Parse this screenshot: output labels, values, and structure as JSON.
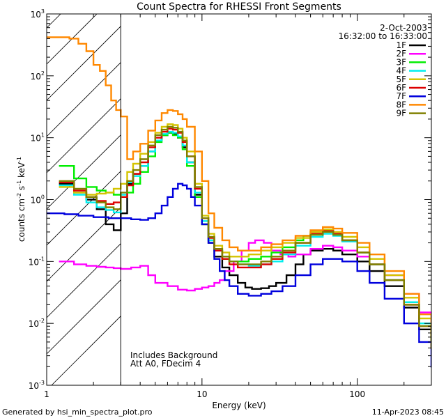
{
  "chart_data": {
    "type": "line",
    "title": "Count Spectra for RHESSI Front Segments",
    "xlabel": "Energy (keV)",
    "ylabel_main": "counts cm",
    "ylabel_sup1": "-2",
    "ylabel_mid": " s",
    "ylabel_sup2": "-1",
    "ylabel_end": " keV",
    "ylabel_sup3": "-1",
    "xscale": "log",
    "yscale": "log",
    "xlim": [
      1,
      300
    ],
    "ylim": [
      0.001,
      1000
    ],
    "x_ticks": [
      {
        "value": 1,
        "label": "1"
      },
      {
        "value": 10,
        "label": "10"
      },
      {
        "value": 100,
        "label": "100"
      }
    ],
    "y_ticks": [
      {
        "value": 0.001,
        "base": "10",
        "exp": "-3"
      },
      {
        "value": 0.01,
        "base": "10",
        "exp": "-2"
      },
      {
        "value": 0.1,
        "base": "10",
        "exp": "-1"
      },
      {
        "value": 1,
        "base": "10",
        "exp": "0"
      },
      {
        "value": 10,
        "base": "10",
        "exp": "1"
      },
      {
        "value": 100,
        "base": "10",
        "exp": "2"
      },
      {
        "value": 1000,
        "base": "10",
        "exp": "3"
      }
    ],
    "date": "2-Oct-2003",
    "time_range": "16:32:00 to 16:33:00",
    "notes": [
      "Includes Background",
      "Att A0, FDecim 4"
    ],
    "excluded_region": {
      "from": 1,
      "to": 3,
      "style": "hatched"
    },
    "threshold_line": 3,
    "legend_position": "top-right",
    "series": [
      {
        "name": "1F",
        "color": "#000000",
        "x": [
          1.2,
          1.5,
          1.8,
          2.1,
          2.4,
          2.7,
          3.0,
          3.3,
          3.6,
          4.0,
          4.5,
          5.0,
          5.5,
          6.0,
          6.5,
          7.0,
          7.5,
          8.0,
          9.0,
          10.0,
          11.0,
          12.0,
          13.5,
          15.0,
          17.0,
          19.0,
          21.0,
          24.0,
          27.0,
          30.0,
          35.0,
          40.0,
          45.0,
          50.0,
          60.0,
          70.0,
          80.0,
          100.0,
          120.0,
          150.0,
          200.0,
          250.0,
          300.0
        ],
        "y": [
          1.8,
          1.3,
          1.0,
          0.7,
          0.4,
          0.32,
          0.6,
          1.8,
          2.6,
          3.5,
          6.0,
          9.0,
          11.0,
          12.0,
          11.5,
          10.0,
          7.0,
          4.0,
          1.2,
          0.4,
          0.2,
          0.12,
          0.08,
          0.06,
          0.045,
          0.038,
          0.036,
          0.037,
          0.04,
          0.045,
          0.06,
          0.09,
          0.13,
          0.15,
          0.16,
          0.15,
          0.13,
          0.1,
          0.07,
          0.04,
          0.018,
          0.008,
          0.004
        ]
      },
      {
        "name": "2F",
        "color": "#ff00ff",
        "x": [
          1.2,
          1.5,
          1.8,
          2.1,
          2.4,
          2.7,
          3.0,
          3.5,
          4.0,
          4.5,
          5.0,
          6.0,
          7.0,
          8.0,
          9.0,
          10.0,
          11.0,
          12.0,
          13.0,
          14.0,
          16.0,
          18.0,
          20.0,
          22.0,
          25.0,
          28.0,
          32.0,
          36.0,
          40.0,
          50.0,
          60.0,
          70.0,
          80.0,
          100.0,
          120.0,
          150.0,
          200.0,
          250.0,
          300.0
        ],
        "y": [
          0.1,
          0.09,
          0.085,
          0.082,
          0.08,
          0.078,
          0.076,
          0.08,
          0.085,
          0.06,
          0.045,
          0.04,
          0.035,
          0.034,
          0.036,
          0.038,
          0.04,
          0.045,
          0.05,
          0.07,
          0.1,
          0.15,
          0.2,
          0.22,
          0.2,
          0.15,
          0.13,
          0.12,
          0.13,
          0.16,
          0.18,
          0.17,
          0.15,
          0.12,
          0.09,
          0.06,
          0.03,
          0.015,
          0.008
        ]
      },
      {
        "name": "3F",
        "color": "#00ee00",
        "x": [
          1.2,
          1.5,
          1.8,
          2.1,
          2.4,
          2.7,
          3.0,
          3.3,
          3.6,
          4.0,
          4.5,
          5.0,
          5.5,
          6.0,
          6.5,
          7.0,
          7.5,
          8.0,
          9.0,
          10.0,
          11.0,
          12.0,
          13.5,
          15.0,
          17.0,
          20.0,
          24.0,
          28.0,
          33.0,
          40.0,
          45.0,
          50.0,
          60.0,
          70.0,
          80.0,
          100.0,
          120.0,
          150.0,
          200.0,
          250.0,
          300.0
        ],
        "y": [
          3.5,
          2.2,
          1.6,
          1.4,
          1.3,
          1.2,
          1.1,
          1.3,
          1.8,
          2.8,
          5.0,
          8.5,
          11.0,
          12.0,
          11.0,
          10.0,
          6.5,
          3.5,
          1.1,
          0.4,
          0.22,
          0.15,
          0.11,
          0.1,
          0.1,
          0.11,
          0.12,
          0.14,
          0.17,
          0.22,
          0.26,
          0.3,
          0.32,
          0.28,
          0.22,
          0.14,
          0.09,
          0.05,
          0.022,
          0.01,
          0.005
        ]
      },
      {
        "name": "4F",
        "color": "#00eeee",
        "x": [
          1.2,
          1.5,
          1.8,
          2.1,
          2.4,
          2.7,
          3.0,
          3.3,
          3.6,
          4.0,
          4.5,
          5.0,
          5.5,
          6.0,
          6.5,
          7.0,
          7.5,
          8.0,
          9.0,
          10.0,
          11.0,
          12.0,
          13.5,
          15.0,
          17.0,
          20.0,
          24.0,
          28.0,
          33.0,
          40.0,
          50.0,
          60.0,
          70.0,
          80.0,
          100.0,
          120.0,
          150.0,
          200.0,
          250.0,
          300.0
        ],
        "y": [
          1.7,
          1.2,
          0.9,
          0.75,
          0.68,
          0.62,
          1.2,
          1.9,
          2.4,
          3.5,
          6.0,
          9.0,
          11.5,
          12.5,
          12.0,
          10.5,
          7.5,
          4.0,
          1.3,
          0.45,
          0.22,
          0.15,
          0.12,
          0.1,
          0.09,
          0.085,
          0.09,
          0.1,
          0.13,
          0.18,
          0.25,
          0.28,
          0.26,
          0.21,
          0.14,
          0.09,
          0.05,
          0.022,
          0.01,
          0.005
        ]
      },
      {
        "name": "5F",
        "color": "#d4c400",
        "x": [
          1.2,
          1.5,
          1.8,
          2.1,
          2.4,
          2.7,
          3.0,
          3.3,
          3.6,
          4.0,
          4.5,
          5.0,
          5.5,
          6.0,
          6.5,
          7.0,
          7.5,
          8.0,
          9.0,
          10.0,
          11.0,
          12.0,
          13.5,
          15.0,
          17.0,
          20.0,
          24.0,
          28.0,
          33.0,
          40.0,
          50.0,
          60.0,
          70.0,
          80.0,
          100.0,
          120.0,
          150.0,
          200.0,
          250.0,
          300.0
        ],
        "y": [
          1.6,
          1.3,
          1.2,
          1.25,
          1.3,
          1.5,
          1.8,
          2.8,
          3.8,
          5.5,
          8.5,
          12.0,
          15.0,
          16.5,
          16.0,
          14.0,
          10.0,
          6.0,
          1.8,
          0.55,
          0.28,
          0.18,
          0.14,
          0.12,
          0.12,
          0.13,
          0.15,
          0.17,
          0.2,
          0.24,
          0.3,
          0.33,
          0.3,
          0.25,
          0.17,
          0.11,
          0.06,
          0.026,
          0.012,
          0.006
        ]
      },
      {
        "name": "6F",
        "color": "#dd0000",
        "x": [
          1.2,
          1.5,
          1.8,
          2.1,
          2.4,
          2.7,
          3.0,
          3.3,
          3.6,
          4.0,
          4.5,
          5.0,
          5.5,
          6.0,
          6.5,
          7.0,
          7.5,
          8.0,
          9.0,
          10.0,
          11.0,
          12.0,
          13.5,
          15.0,
          17.0,
          20.0,
          24.0,
          28.0,
          33.0,
          40.0,
          50.0,
          60.0,
          70.0,
          80.0,
          100.0,
          120.0,
          150.0,
          200.0,
          250.0,
          300.0
        ],
        "y": [
          1.9,
          1.4,
          1.1,
          0.95,
          0.85,
          0.9,
          1.1,
          1.7,
          2.6,
          4.0,
          7.0,
          10.0,
          12.5,
          14.0,
          13.5,
          12.0,
          8.5,
          5.0,
          1.5,
          0.5,
          0.24,
          0.15,
          0.11,
          0.09,
          0.08,
          0.08,
          0.09,
          0.11,
          0.14,
          0.2,
          0.28,
          0.31,
          0.28,
          0.22,
          0.14,
          0.09,
          0.05,
          0.02,
          0.009,
          0.004
        ]
      },
      {
        "name": "7F",
        "color": "#0000dd",
        "x": [
          1.0,
          1.3,
          1.6,
          2.0,
          2.5,
          3.0,
          3.5,
          4.0,
          4.5,
          5.0,
          5.5,
          6.0,
          6.5,
          7.0,
          7.5,
          8.0,
          8.5,
          9.0,
          10.0,
          11.0,
          12.0,
          13.0,
          14.0,
          15.0,
          17.0,
          20.0,
          24.0,
          28.0,
          33.0,
          40.0,
          50.0,
          60.0,
          70.0,
          80.0,
          100.0,
          120.0,
          150.0,
          200.0,
          250.0,
          300.0
        ],
        "y": [
          0.6,
          0.58,
          0.55,
          0.52,
          0.5,
          0.5,
          0.48,
          0.47,
          0.5,
          0.6,
          0.8,
          1.1,
          1.5,
          1.8,
          1.7,
          1.5,
          1.1,
          0.8,
          0.4,
          0.2,
          0.11,
          0.07,
          0.05,
          0.04,
          0.03,
          0.028,
          0.03,
          0.033,
          0.04,
          0.06,
          0.09,
          0.11,
          0.11,
          0.1,
          0.07,
          0.045,
          0.025,
          0.01,
          0.005,
          0.002
        ]
      },
      {
        "name": "8F",
        "color": "#ff8800",
        "x": [
          1.0,
          1.2,
          1.4,
          1.6,
          1.8,
          2.0,
          2.2,
          2.4,
          2.6,
          2.8,
          3.0,
          3.3,
          3.6,
          4.0,
          4.5,
          5.0,
          5.5,
          6.0,
          6.5,
          7.0,
          7.5,
          8.0,
          9.0,
          10.0,
          11.0,
          12.0,
          13.5,
          15.0,
          17.0,
          20.0,
          24.0,
          28.0,
          33.0,
          40.0,
          50.0,
          60.0,
          70.0,
          80.0,
          100.0,
          120.0,
          150.0,
          200.0,
          250.0,
          300.0
        ],
        "y": [
          420,
          420,
          400,
          330,
          250,
          150,
          120,
          70,
          40,
          28,
          22,
          4.5,
          6.0,
          8.0,
          13.0,
          19.0,
          25.0,
          28.0,
          27.0,
          24.0,
          20.0,
          15.0,
          6.0,
          2.0,
          0.6,
          0.35,
          0.22,
          0.17,
          0.15,
          0.15,
          0.17,
          0.19,
          0.22,
          0.26,
          0.32,
          0.36,
          0.34,
          0.29,
          0.2,
          0.13,
          0.07,
          0.03,
          0.014,
          0.007
        ]
      },
      {
        "name": "9F",
        "color": "#808000",
        "x": [
          1.2,
          1.5,
          1.8,
          2.1,
          2.4,
          2.7,
          3.0,
          3.3,
          3.6,
          4.0,
          4.5,
          5.0,
          5.5,
          6.0,
          6.5,
          7.0,
          7.5,
          8.0,
          9.0,
          10.0,
          11.0,
          12.0,
          13.5,
          15.0,
          17.0,
          20.0,
          24.0,
          28.0,
          33.0,
          40.0,
          50.0,
          60.0,
          70.0,
          80.0,
          100.0,
          120.0,
          150.0,
          200.0,
          250.0,
          300.0
        ],
        "y": [
          2.0,
          1.5,
          1.1,
          0.9,
          0.75,
          0.7,
          1.3,
          2.0,
          3.0,
          4.5,
          7.5,
          11.0,
          13.5,
          15.0,
          14.5,
          12.5,
          9.0,
          5.0,
          1.6,
          0.5,
          0.25,
          0.16,
          0.12,
          0.1,
          0.09,
          0.09,
          0.1,
          0.12,
          0.15,
          0.2,
          0.27,
          0.3,
          0.27,
          0.22,
          0.14,
          0.09,
          0.05,
          0.02,
          0.009,
          0.004
        ]
      }
    ]
  },
  "footer": {
    "generated_by": "Generated by hsi_min_spectra_plot.pro",
    "timestamp": "11-Apr-2023 08:45"
  }
}
